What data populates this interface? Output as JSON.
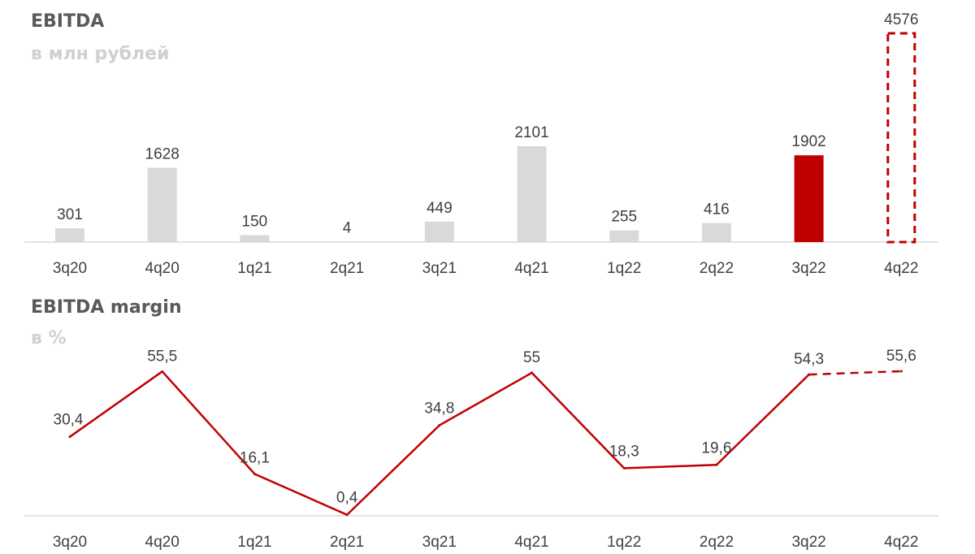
{
  "chart_data": [
    {
      "type": "bar",
      "title": "EBITDA",
      "subtitle": "в млн рублей",
      "categories": [
        "3q20",
        "4q20",
        "1q21",
        "2q21",
        "3q21",
        "4q21",
        "1q22",
        "2q22",
        "3q22",
        "4q22"
      ],
      "values": [
        301,
        1628,
        150,
        4,
        449,
        2101,
        255,
        416,
        1902,
        4576
      ],
      "value_labels": [
        "301",
        "1628",
        "150",
        "4",
        "449",
        "2101",
        "255",
        "416",
        "1902",
        "4576"
      ],
      "bar_styles": [
        "normal",
        "normal",
        "normal",
        "normal",
        "normal",
        "normal",
        "normal",
        "normal",
        "highlight",
        "forecast-dashed"
      ],
      "colors": {
        "normal": "#d9d9d9",
        "highlight": "#c00000",
        "forecast": "#c00000"
      },
      "ylim": [
        0,
        4576
      ],
      "grid": false,
      "legend": "none"
    },
    {
      "type": "line",
      "title": "EBITDA margin",
      "subtitle": "в %",
      "categories": [
        "3q20",
        "4q20",
        "1q21",
        "2q21",
        "3q21",
        "4q21",
        "1q22",
        "2q22",
        "3q22",
        "4q22"
      ],
      "values": [
        30.4,
        55.5,
        16.1,
        0.4,
        34.8,
        55,
        18.3,
        19.6,
        54.3,
        55.6
      ],
      "value_labels": [
        "30,4",
        "55,5",
        "16,1",
        "0,4",
        "34,8",
        "55",
        "18,3",
        "19,6",
        "54,3",
        "55,6"
      ],
      "forecast_from_index": 8,
      "colors": {
        "line": "#c00000"
      },
      "ylim": [
        0,
        55.6
      ],
      "grid": false,
      "legend": "none"
    }
  ]
}
